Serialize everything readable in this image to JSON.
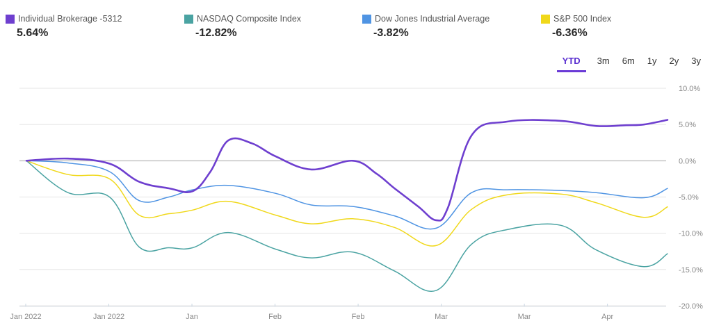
{
  "legend": [
    {
      "name": "Individual Brokerage -5312",
      "value": "5.64%",
      "color": "#6e3fcf"
    },
    {
      "name": "NASDAQ Composite Index",
      "value": "-12.82%",
      "color": "#4aa3a2"
    },
    {
      "name": "Dow Jones Industrial Average",
      "value": "-3.82%",
      "color": "#4f94e3"
    },
    {
      "name": "S&P 500 Index",
      "value": "-6.36%",
      "color": "#f0d81a"
    }
  ],
  "ranges": [
    {
      "label": "YTD",
      "active": true
    },
    {
      "label": "3m",
      "active": false
    },
    {
      "label": "6m",
      "active": false
    },
    {
      "label": "1y",
      "active": false
    },
    {
      "label": "2y",
      "active": false
    },
    {
      "label": "3y",
      "active": false
    }
  ],
  "chart_data": {
    "type": "line",
    "title": "",
    "xlabel": "",
    "ylabel": "",
    "x_unit": "day index",
    "xlim": [
      0,
      108
    ],
    "ylim": [
      -20,
      10
    ],
    "grid": true,
    "legend_position": "top",
    "y_ticks": [
      {
        "value": 10,
        "label": "10.0%"
      },
      {
        "value": 5,
        "label": "5.0%"
      },
      {
        "value": 0,
        "label": "0.0%"
      },
      {
        "value": -5,
        "label": "-5.0%"
      },
      {
        "value": -10,
        "label": "-10.0%"
      },
      {
        "value": -15,
        "label": "-15.0%"
      },
      {
        "value": -20,
        "label": "-20.0%"
      }
    ],
    "x_ticks": [
      {
        "value": 0,
        "label": "Jan 2022"
      },
      {
        "value": 14,
        "label": "Jan 2022"
      },
      {
        "value": 28,
        "label": "Jan"
      },
      {
        "value": 42,
        "label": "Feb"
      },
      {
        "value": 56,
        "label": "Feb"
      },
      {
        "value": 70,
        "label": "Mar"
      },
      {
        "value": 84,
        "label": "Mar"
      },
      {
        "value": 98,
        "label": "Apr"
      }
    ],
    "series": [
      {
        "name": "NASDAQ Composite Index",
        "color": "#4aa3a2",
        "width": 1.5,
        "x": [
          0,
          7,
          14,
          19,
          24,
          28,
          34,
          42,
          48,
          55,
          62,
          69,
          75,
          81,
          90,
          96,
          104,
          108
        ],
        "values": [
          0,
          -4.4,
          -5.0,
          -11.9,
          -12.0,
          -12.0,
          -9.9,
          -12.2,
          -13.4,
          -12.6,
          -15.2,
          -17.9,
          -11.5,
          -9.5,
          -8.9,
          -12.3,
          -14.6,
          -12.82
        ]
      },
      {
        "name": "S&P 500 Index",
        "color": "#f0d81a",
        "width": 1.5,
        "x": [
          0,
          7,
          14,
          19,
          24,
          28,
          34,
          42,
          48,
          55,
          62,
          69,
          75,
          81,
          90,
          96,
          104,
          108
        ],
        "values": [
          0,
          -1.9,
          -2.5,
          -7.5,
          -7.3,
          -6.8,
          -5.6,
          -7.5,
          -8.7,
          -8.0,
          -9.2,
          -11.7,
          -6.7,
          -4.7,
          -4.6,
          -5.8,
          -7.8,
          -6.36
        ]
      },
      {
        "name": "Dow Jones Industrial Average",
        "color": "#4f94e3",
        "width": 1.5,
        "x": [
          0,
          7,
          14,
          19,
          24,
          28,
          34,
          42,
          48,
          55,
          62,
          69,
          75,
          81,
          90,
          96,
          104,
          108
        ],
        "values": [
          0,
          -0.3,
          -1.5,
          -5.5,
          -5.0,
          -4.0,
          -3.4,
          -4.5,
          -6.1,
          -6.3,
          -7.6,
          -9.3,
          -4.4,
          -4.0,
          -4.1,
          -4.4,
          -5.1,
          -3.82
        ]
      },
      {
        "name": "Individual Brokerage -5312",
        "color": "#6e3fcf",
        "width": 2.6,
        "x": [
          0,
          7,
          14,
          19,
          24,
          28,
          31,
          34,
          38,
          42,
          48,
          55,
          59,
          62,
          66,
          69,
          71,
          75,
          81,
          90,
          96,
          101,
          104,
          108
        ],
        "values": [
          0,
          0.3,
          -0.4,
          -2.9,
          -3.8,
          -4.2,
          -1.5,
          2.8,
          2.4,
          0.6,
          -1.2,
          0.0,
          -1.8,
          -3.8,
          -6.3,
          -8.2,
          -6.5,
          3.5,
          5.4,
          5.5,
          4.8,
          4.9,
          5.0,
          5.64
        ]
      }
    ]
  }
}
